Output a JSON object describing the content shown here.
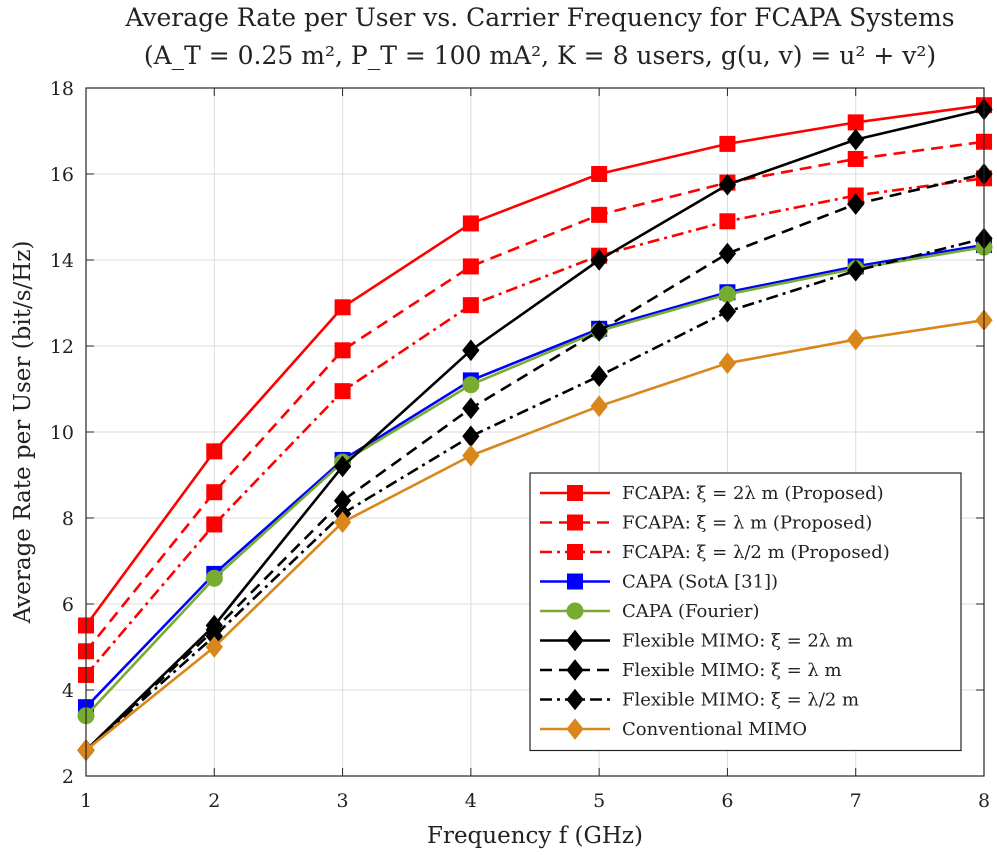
{
  "chart_data": {
    "type": "line",
    "title": "Average Rate per User vs. Carrier Frequency for FCAPA Systems",
    "subtitle": "(A_T = 0.25 m², P_T = 100 mA², K = 8 users, g(u, v) = u² + v²)",
    "xlabel": "Frequency f (GHz)",
    "ylabel": "Average Rate per User (bit/s/Hz)",
    "x": [
      1,
      2,
      3,
      4,
      5,
      6,
      7,
      8
    ],
    "xlim": [
      1,
      8
    ],
    "ylim": [
      2,
      18
    ],
    "xticks": [
      1,
      2,
      3,
      4,
      5,
      6,
      7,
      8
    ],
    "yticks": [
      2,
      4,
      6,
      8,
      10,
      12,
      14,
      16,
      18
    ],
    "grid": true,
    "legend_position": "bottom-right",
    "series": [
      {
        "name": "FCAPA: ξ = 2λ m (Proposed)",
        "color": "#ff0000",
        "dash": "solid",
        "marker": "square",
        "values": [
          5.5,
          9.55,
          12.9,
          14.85,
          16.0,
          16.7,
          17.2,
          17.6
        ]
      },
      {
        "name": "FCAPA: ξ = λ m (Proposed)",
        "color": "#ff0000",
        "dash": "dashed",
        "marker": "square",
        "values": [
          4.9,
          8.6,
          11.9,
          13.85,
          15.05,
          15.8,
          16.35,
          16.75
        ]
      },
      {
        "name": "FCAPA: ξ = λ/2 m (Proposed)",
        "color": "#ff0000",
        "dash": "dashdot",
        "marker": "square",
        "values": [
          4.35,
          7.85,
          10.95,
          12.95,
          14.1,
          14.9,
          15.5,
          15.9
        ]
      },
      {
        "name": "CAPA (SotA [31])",
        "color": "#0000ff",
        "dash": "solid",
        "marker": "square",
        "values": [
          3.6,
          6.7,
          9.35,
          11.2,
          12.4,
          13.25,
          13.85,
          14.35
        ]
      },
      {
        "name": "CAPA (Fourier)",
        "color": "#77ac30",
        "dash": "solid",
        "marker": "circle",
        "values": [
          3.4,
          6.6,
          9.3,
          11.1,
          12.35,
          13.2,
          13.8,
          14.3
        ]
      },
      {
        "name": "Flexible MIMO: ξ = 2λ m",
        "color": "#000000",
        "dash": "solid",
        "marker": "diamond",
        "values": [
          2.6,
          5.5,
          9.2,
          11.9,
          14.0,
          15.75,
          16.8,
          17.5
        ]
      },
      {
        "name": "Flexible MIMO: ξ = λ m",
        "color": "#000000",
        "dash": "dashed",
        "marker": "diamond",
        "values": [
          2.6,
          5.4,
          8.4,
          10.55,
          12.35,
          14.15,
          15.3,
          16.0
        ]
      },
      {
        "name": "Flexible MIMO: ξ = λ/2 m",
        "color": "#000000",
        "dash": "dashdot",
        "marker": "diamond",
        "values": [
          2.6,
          5.25,
          8.1,
          9.9,
          11.3,
          12.8,
          13.75,
          14.5
        ]
      },
      {
        "name": "Conventional MIMO",
        "color": "#d9861a",
        "dash": "solid",
        "marker": "diamond",
        "values": [
          2.6,
          5.0,
          7.9,
          9.45,
          10.6,
          11.6,
          12.15,
          12.6
        ]
      }
    ]
  }
}
